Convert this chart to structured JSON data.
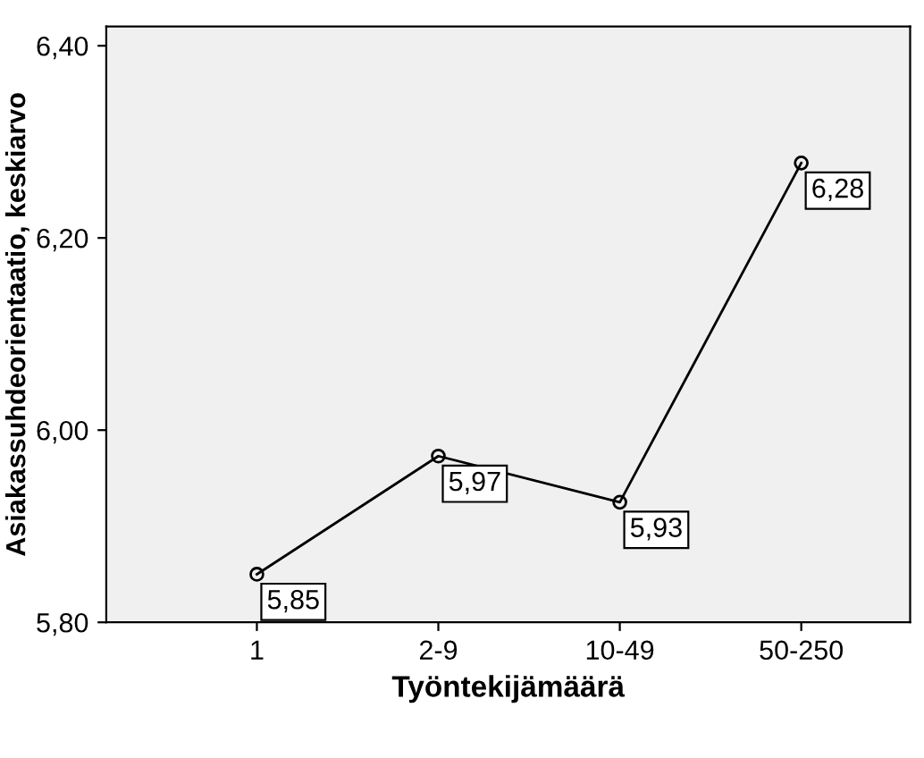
{
  "chart_data": {
    "type": "line",
    "xlabel": "Työntekijämäärä",
    "ylabel": "Asiakassuhdeorientaatio, keskiarvo",
    "categories": [
      "1",
      "2-9",
      "10-49",
      "50-250"
    ],
    "series": [
      {
        "color": "#000000",
        "values": [
          5.85,
          5.973,
          5.925,
          6.278
        ],
        "value_labels": [
          "5,85",
          "5,97",
          "5,93",
          "6,28"
        ]
      }
    ],
    "ylim": [
      5.8,
      6.42
    ],
    "yticks": [
      {
        "value": 5.8,
        "label": "5,80"
      },
      {
        "value": 6.0,
        "label": "6,00"
      },
      {
        "value": 6.2,
        "label": "6,20"
      },
      {
        "value": 6.4,
        "label": "6,40"
      }
    ],
    "marker": "circle",
    "line_style": "solid",
    "grid": false,
    "legend": false
  }
}
